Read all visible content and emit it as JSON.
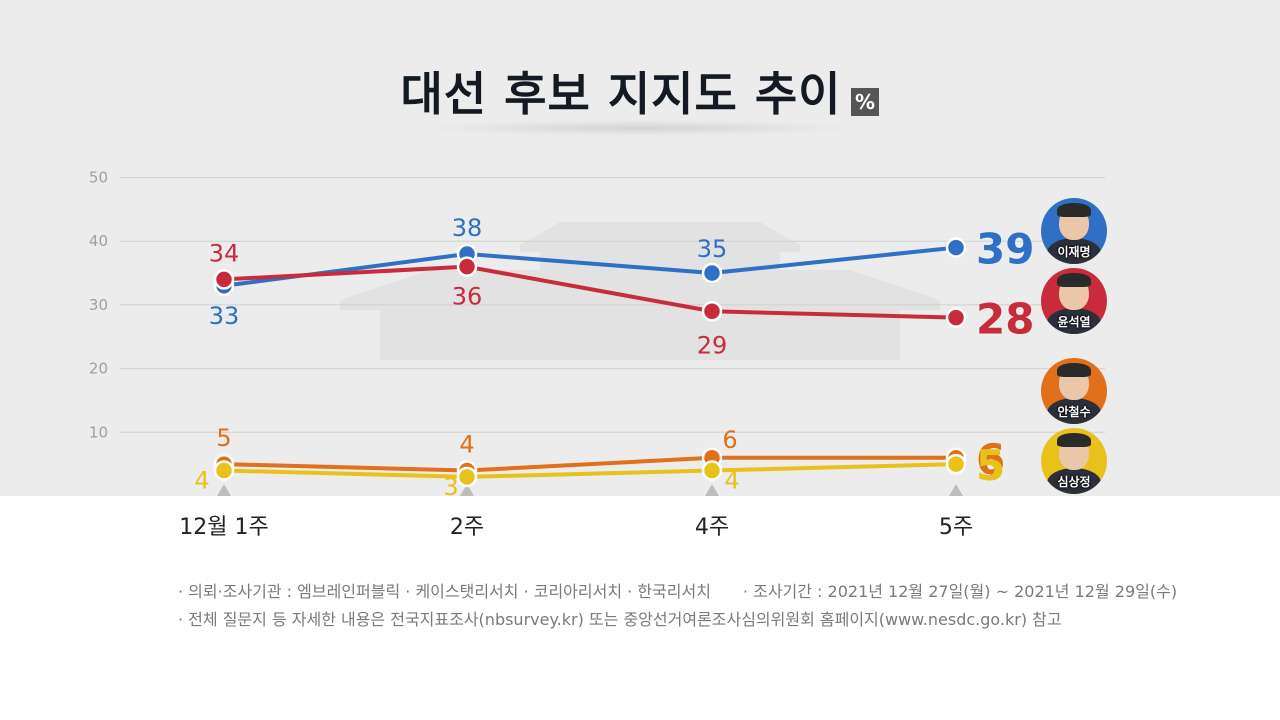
{
  "header": {
    "title": "대선 후보 지지도 추이",
    "unit_badge": "%"
  },
  "chart_data": {
    "type": "line",
    "title": "대선 후보 지지도 추이",
    "unit": "%",
    "categories": [
      "12월 1주",
      "2주",
      "4주",
      "5주"
    ],
    "yticks": [
      10,
      20,
      30,
      40,
      50
    ],
    "ylim": [
      0,
      50
    ],
    "grid": true,
    "series": [
      {
        "name": "이재명",
        "color": "#2f6fc4",
        "values": [
          33,
          38,
          35,
          39
        ]
      },
      {
        "name": "윤석열",
        "color": "#c82c3c",
        "values": [
          34,
          36,
          29,
          28
        ]
      },
      {
        "name": "안철수",
        "color": "#e0701a",
        "values": [
          5,
          4,
          6,
          6
        ]
      },
      {
        "name": "심상정",
        "color": "#e8c21a",
        "values": [
          4,
          3,
          4,
          5
        ]
      }
    ]
  },
  "candidates": [
    {
      "name": "이재명",
      "bg": "#2f6fc4"
    },
    {
      "name": "윤석열",
      "bg": "#c82c3c"
    },
    {
      "name": "안철수",
      "bg": "#e0701a"
    },
    {
      "name": "심상정",
      "bg": "#e8c21a"
    }
  ],
  "notes": {
    "agency": "· 의뢰·조사기관 : 엠브레인퍼블릭 · 케이스탯리서치 · 코리아리서치 · 한국리서치",
    "period": "· 조사기간 : 2021년 12월 27일(월) ~ 2021년 12월 29일(수)",
    "reference": "· 전체 질문지 등 자세한 내용은 전국지표조사(nbsurvey.kr) 또는 중앙선거여론조사심의위원회 홈페이지(www.nesdc.go.kr) 참고"
  }
}
